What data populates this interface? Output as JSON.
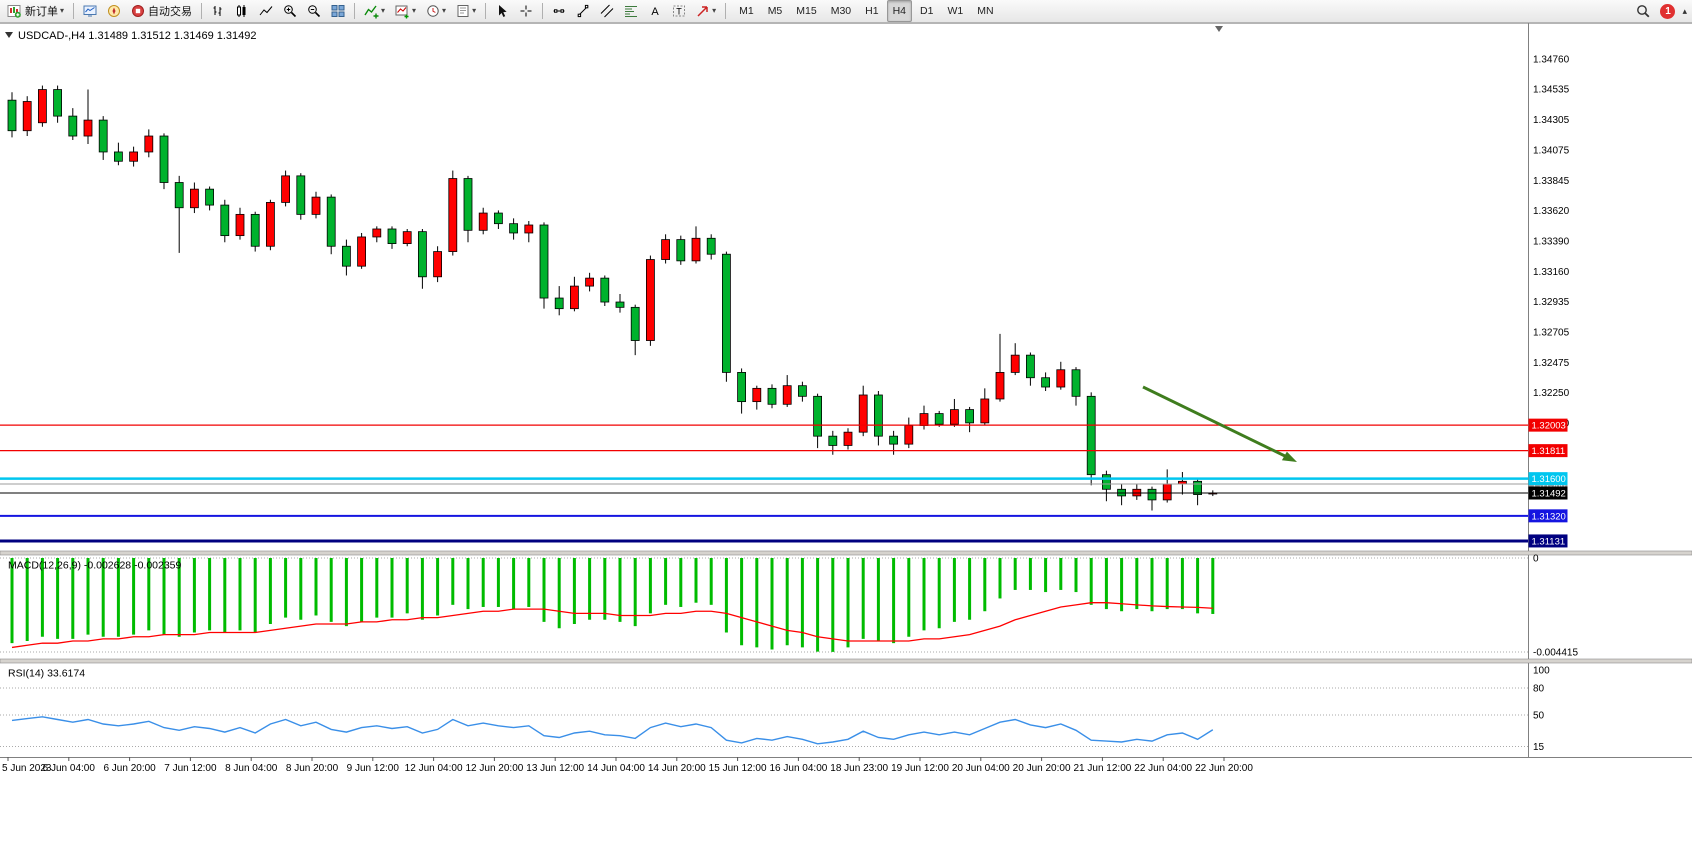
{
  "toolbar": {
    "new_order": "新订单",
    "auto_trading": "自动交易",
    "timeframes": [
      "M1",
      "M5",
      "M15",
      "M30",
      "H1",
      "H4",
      "D1",
      "W1",
      "MN"
    ],
    "active_timeframe": "H4",
    "notification_count": "1",
    "icons": {
      "dropdown": "▾",
      "text_tool": "A",
      "label_tool": "T",
      "overflow": "▴"
    }
  },
  "chart": {
    "header_text": "USDCAD-,H4 1.31489 1.31512 1.31469 1.31492",
    "symbol": "USDCAD-",
    "period": "H4",
    "open": "1.31489",
    "high": "1.31512",
    "low": "1.31469",
    "close": "1.31492"
  },
  "macd": {
    "label": "MACD(12,26,9) -0.002628 -0.002359",
    "axis_top": "0",
    "axis_bottom": "-0.004415"
  },
  "rsi": {
    "label": "RSI(14) 33.6174",
    "axis_labels": [
      "100",
      "80",
      "50",
      "15"
    ],
    "axis_values": [
      100,
      80,
      50,
      15
    ]
  },
  "chart_data": {
    "type": "candlestick",
    "symbol": "USDCAD-",
    "timeframe": "H4",
    "price_axis_labels": [
      "1.34760",
      "1.34535",
      "1.34305",
      "1.34075",
      "1.33845",
      "1.33620",
      "1.33390",
      "1.33160",
      "1.32935",
      "1.32705",
      "1.32475",
      "1.32250",
      "1.32020"
    ],
    "time_labels": [
      "5 Jun 2023",
      "6 Jun 04:00",
      "6 Jun 20:00",
      "7 Jun 12:00",
      "8 Jun 04:00",
      "8 Jun 20:00",
      "9 Jun 12:00",
      "12 Jun 04:00",
      "12 Jun 20:00",
      "13 Jun 12:00",
      "14 Jun 04:00",
      "14 Jun 20:00",
      "15 Jun 12:00",
      "16 Jun 04:00",
      "18 Jun 23:00",
      "19 Jun 12:00",
      "20 Jun 04:00",
      "20 Jun 20:00",
      "21 Jun 12:00",
      "22 Jun 04:00",
      "22 Jun 20:00"
    ],
    "levels": [
      {
        "price": "1.32003",
        "value": 1.32003,
        "color": "#f20000",
        "width": 1.2,
        "name": "resistance-upper"
      },
      {
        "price": "1.31811",
        "value": 1.31811,
        "color": "#f20000",
        "width": 1.2,
        "name": "resistance-lower"
      },
      {
        "price": "1.31560",
        "value": 1.3156,
        "color": "#9e9e9e",
        "width": 1,
        "name": "minor-gray"
      },
      {
        "price": "1.31600",
        "value": 1.316,
        "color": "#00c6ef",
        "width": 2.5,
        "name": "pivot-cyan"
      },
      {
        "price": "1.31492",
        "value": 1.31492,
        "color": "#000000",
        "width": 1,
        "name": "current-price"
      },
      {
        "price": "1.31320",
        "value": 1.3132,
        "color": "#1414e0",
        "width": 2,
        "name": "support-upper"
      },
      {
        "price": "1.31131",
        "value": 1.31131,
        "color": "#000080",
        "width": 3,
        "name": "support-lower"
      }
    ],
    "ohlc": [
      [
        1.3445,
        1.3451,
        1.3417,
        1.3422
      ],
      [
        1.3422,
        1.3448,
        1.3418,
        1.3444
      ],
      [
        1.3428,
        1.3456,
        1.3425,
        1.3453
      ],
      [
        1.3453,
        1.3456,
        1.3428,
        1.3433
      ],
      [
        1.3433,
        1.3439,
        1.3415,
        1.3418
      ],
      [
        1.3418,
        1.3453,
        1.3412,
        1.343
      ],
      [
        1.343,
        1.3433,
        1.34,
        1.3406
      ],
      [
        1.3406,
        1.3413,
        1.3396,
        1.3399
      ],
      [
        1.3399,
        1.341,
        1.3395,
        1.3406
      ],
      [
        1.3406,
        1.3423,
        1.3402,
        1.3418
      ],
      [
        1.3418,
        1.342,
        1.3378,
        1.3383
      ],
      [
        1.3383,
        1.3388,
        1.333,
        1.3364
      ],
      [
        1.3364,
        1.3383,
        1.336,
        1.3378
      ],
      [
        1.3378,
        1.338,
        1.3362,
        1.3366
      ],
      [
        1.3366,
        1.337,
        1.3338,
        1.3343
      ],
      [
        1.3343,
        1.3364,
        1.334,
        1.3359
      ],
      [
        1.3359,
        1.3361,
        1.3331,
        1.3335
      ],
      [
        1.3335,
        1.337,
        1.3332,
        1.3368
      ],
      [
        1.3368,
        1.3392,
        1.3365,
        1.3388
      ],
      [
        1.3388,
        1.339,
        1.3355,
        1.3359
      ],
      [
        1.3359,
        1.3376,
        1.3356,
        1.3372
      ],
      [
        1.3372,
        1.3374,
        1.3329,
        1.3335
      ],
      [
        1.3335,
        1.334,
        1.3313,
        1.332
      ],
      [
        1.332,
        1.3345,
        1.3318,
        1.3342
      ],
      [
        1.3342,
        1.335,
        1.3338,
        1.3348
      ],
      [
        1.3348,
        1.335,
        1.3333,
        1.3337
      ],
      [
        1.3337,
        1.3348,
        1.3335,
        1.3346
      ],
      [
        1.3346,
        1.3348,
        1.3303,
        1.3312
      ],
      [
        1.3312,
        1.3335,
        1.3308,
        1.3331
      ],
      [
        1.3331,
        1.3392,
        1.3328,
        1.3386
      ],
      [
        1.3386,
        1.3388,
        1.3338,
        1.3347
      ],
      [
        1.3347,
        1.3364,
        1.3344,
        1.336
      ],
      [
        1.336,
        1.3362,
        1.3348,
        1.3352
      ],
      [
        1.3352,
        1.3356,
        1.334,
        1.3345
      ],
      [
        1.3345,
        1.3354,
        1.3338,
        1.3351
      ],
      [
        1.3351,
        1.3353,
        1.3288,
        1.3296
      ],
      [
        1.3296,
        1.3305,
        1.3283,
        1.3288
      ],
      [
        1.3288,
        1.3312,
        1.3286,
        1.3305
      ],
      [
        1.3305,
        1.3315,
        1.3301,
        1.3311
      ],
      [
        1.3311,
        1.3313,
        1.329,
        1.3293
      ],
      [
        1.3293,
        1.3299,
        1.3285,
        1.3289
      ],
      [
        1.3289,
        1.3291,
        1.3253,
        1.3264
      ],
      [
        1.3264,
        1.3328,
        1.326,
        1.3325
      ],
      [
        1.3325,
        1.3344,
        1.3322,
        1.334
      ],
      [
        1.334,
        1.3343,
        1.3321,
        1.3324
      ],
      [
        1.3324,
        1.335,
        1.3322,
        1.3341
      ],
      [
        1.3341,
        1.3344,
        1.3325,
        1.3329
      ],
      [
        1.3329,
        1.3331,
        1.3233,
        1.324
      ],
      [
        1.324,
        1.3243,
        1.3209,
        1.3218
      ],
      [
        1.3218,
        1.323,
        1.3212,
        1.3228
      ],
      [
        1.3228,
        1.3231,
        1.3213,
        1.3216
      ],
      [
        1.3216,
        1.3238,
        1.3214,
        1.323
      ],
      [
        1.323,
        1.3233,
        1.3218,
        1.3222
      ],
      [
        1.3222,
        1.3224,
        1.3183,
        1.3192
      ],
      [
        1.3192,
        1.3196,
        1.3178,
        1.3185
      ],
      [
        1.3185,
        1.3198,
        1.3182,
        1.3195
      ],
      [
        1.3195,
        1.323,
        1.3192,
        1.3223
      ],
      [
        1.3223,
        1.3226,
        1.3185,
        1.3192
      ],
      [
        1.3192,
        1.3196,
        1.3178,
        1.3186
      ],
      [
        1.3186,
        1.3206,
        1.3183,
        1.32
      ],
      [
        1.32,
        1.3215,
        1.3197,
        1.3209
      ],
      [
        1.3209,
        1.3211,
        1.3199,
        1.3201
      ],
      [
        1.3201,
        1.322,
        1.3199,
        1.3212
      ],
      [
        1.3212,
        1.3214,
        1.3195,
        1.3202
      ],
      [
        1.3202,
        1.3228,
        1.32,
        1.322
      ],
      [
        1.322,
        1.3269,
        1.3218,
        1.324
      ],
      [
        1.324,
        1.3262,
        1.3238,
        1.3253
      ],
      [
        1.3253,
        1.3255,
        1.323,
        1.3236
      ],
      [
        1.3236,
        1.324,
        1.3226,
        1.3229
      ],
      [
        1.3229,
        1.3248,
        1.3227,
        1.3242
      ],
      [
        1.3242,
        1.3244,
        1.3215,
        1.3222
      ],
      [
        1.3222,
        1.3225,
        1.3155,
        1.3163
      ],
      [
        1.3163,
        1.3166,
        1.3143,
        1.3152
      ],
      [
        1.3152,
        1.3156,
        1.314,
        1.3147
      ],
      [
        1.3147,
        1.3156,
        1.3144,
        1.3152
      ],
      [
        1.3152,
        1.3154,
        1.3136,
        1.3144
      ],
      [
        1.3144,
        1.3167,
        1.3142,
        1.3156
      ],
      [
        1.3156,
        1.3165,
        1.3148,
        1.3158
      ],
      [
        1.3158,
        1.316,
        1.314,
        1.3148
      ],
      [
        1.31489,
        1.31512,
        1.31469,
        1.31492
      ]
    ],
    "macd_histogram": [
      -0.004,
      -0.0039,
      -0.0037,
      -0.0038,
      -0.0038,
      -0.0036,
      -0.0037,
      -0.0037,
      -0.0036,
      -0.0034,
      -0.0036,
      -0.0037,
      -0.0035,
      -0.0034,
      -0.0035,
      -0.0034,
      -0.0035,
      -0.0031,
      -0.0028,
      -0.0029,
      -0.0027,
      -0.003,
      -0.0032,
      -0.003,
      -0.0028,
      -0.0028,
      -0.0026,
      -0.0029,
      -0.0027,
      -0.0022,
      -0.0024,
      -0.0023,
      -0.0023,
      -0.0024,
      -0.0023,
      -0.003,
      -0.0033,
      -0.0031,
      -0.0029,
      -0.0029,
      -0.003,
      -0.0032,
      -0.0026,
      -0.0022,
      -0.0023,
      -0.0021,
      -0.0022,
      -0.0035,
      -0.0041,
      -0.0042,
      -0.0043,
      -0.0041,
      -0.0042,
      -0.0044,
      -0.00441,
      -0.0042,
      -0.0038,
      -0.0039,
      -0.004,
      -0.0037,
      -0.0034,
      -0.0033,
      -0.003,
      -0.0029,
      -0.0025,
      -0.0019,
      -0.0015,
      -0.0015,
      -0.0016,
      -0.0015,
      -0.0016,
      -0.0022,
      -0.0024,
      -0.0025,
      -0.0024,
      -0.0025,
      -0.0024,
      -0.0024,
      -0.0026,
      -0.002628
    ],
    "macd_signal": [
      -0.0042,
      -0.0041,
      -0.004,
      -0.004,
      -0.0039,
      -0.0039,
      -0.0038,
      -0.0038,
      -0.0037,
      -0.0037,
      -0.0036,
      -0.0036,
      -0.0036,
      -0.0035,
      -0.0035,
      -0.0035,
      -0.0035,
      -0.0034,
      -0.0033,
      -0.0032,
      -0.0031,
      -0.0031,
      -0.0031,
      -0.003,
      -0.003,
      -0.0029,
      -0.0029,
      -0.0028,
      -0.0028,
      -0.0027,
      -0.0026,
      -0.0025,
      -0.0025,
      -0.0024,
      -0.0024,
      -0.0024,
      -0.0025,
      -0.0026,
      -0.0026,
      -0.0026,
      -0.0027,
      -0.0027,
      -0.0027,
      -0.0026,
      -0.0026,
      -0.0025,
      -0.0025,
      -0.0026,
      -0.0028,
      -0.003,
      -0.0032,
      -0.0034,
      -0.0035,
      -0.0037,
      -0.0038,
      -0.0039,
      -0.0039,
      -0.0039,
      -0.0039,
      -0.0039,
      -0.0038,
      -0.0038,
      -0.0037,
      -0.0036,
      -0.0034,
      -0.0032,
      -0.0029,
      -0.0027,
      -0.0025,
      -0.0023,
      -0.0022,
      -0.0021,
      -0.0021,
      -0.00215,
      -0.0022,
      -0.00225,
      -0.00228,
      -0.0023,
      -0.00232,
      -0.002359
    ],
    "rsi_values": [
      44,
      46,
      48,
      45,
      42,
      45,
      40,
      38,
      40,
      43,
      36,
      33,
      37,
      35,
      31,
      36,
      30,
      40,
      45,
      38,
      42,
      34,
      31,
      36,
      38,
      35,
      37,
      30,
      34,
      45,
      38,
      41,
      38,
      36,
      38,
      27,
      25,
      30,
      32,
      28,
      27,
      24,
      36,
      41,
      37,
      40,
      36,
      22,
      19,
      24,
      22,
      26,
      23,
      18,
      20,
      23,
      32,
      25,
      23,
      28,
      31,
      28,
      31,
      28,
      35,
      42,
      45,
      39,
      36,
      40,
      33,
      22,
      21,
      20,
      23,
      21,
      28,
      30,
      23,
      33.6
    ],
    "colors": {
      "bull": "#ff0000",
      "bear": "#00b22d",
      "wick": "#000000",
      "macd_bar": "#00bb00",
      "macd_signal": "#ff0000",
      "rsi_line": "#3a8fe8",
      "arrow": "#3f7d1e"
    }
  }
}
